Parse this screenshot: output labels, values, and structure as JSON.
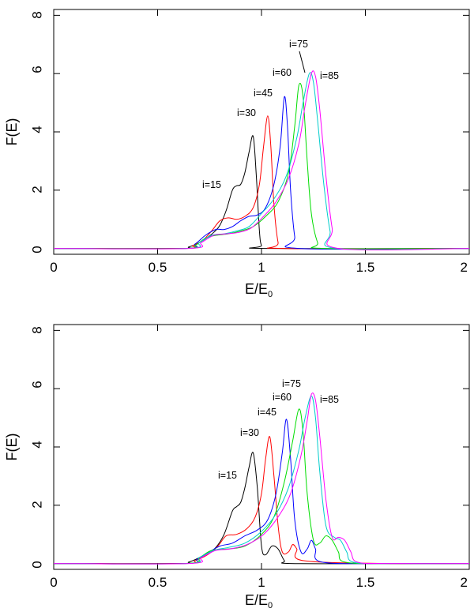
{
  "chart_data": [
    {
      "type": "line",
      "panel": "top",
      "xlabel": "E/E",
      "xlabel_subscript": "0",
      "ylabel": "F(E)",
      "xlim": [
        0,
        2
      ],
      "ylim": [
        -0.2,
        8.2
      ],
      "xticks": [
        0,
        0.5,
        1,
        1.5,
        2
      ],
      "xtick_labels": [
        "0",
        "0.5",
        "1",
        "1.5",
        "2"
      ],
      "yticks": [
        0,
        2,
        4,
        6,
        8
      ],
      "ytick_labels": [
        "0",
        "2",
        "4",
        "6",
        "8"
      ],
      "grid": false,
      "series": [
        {
          "name": "i=15",
          "color": "#000000",
          "x": [
            0,
            0.6,
            0.65,
            0.7,
            0.74,
            0.77,
            0.8,
            0.83,
            0.86,
            0.88,
            0.9,
            0.92,
            0.94,
            0.96,
            0.975,
            0.99,
            1.0,
            1.02,
            2
          ],
          "y": [
            0,
            0,
            0.05,
            0.2,
            0.38,
            0.55,
            0.8,
            1.3,
            2.0,
            2.15,
            2.2,
            2.6,
            3.3,
            3.85,
            2.5,
            0.6,
            0.1,
            0,
            0
          ]
        },
        {
          "name": "i=30",
          "color": "#ff0000",
          "x": [
            0,
            0.62,
            0.67,
            0.72,
            0.76,
            0.8,
            0.84,
            0.88,
            0.92,
            0.96,
            0.99,
            1.01,
            1.03,
            1.045,
            1.06,
            1.08,
            1.1,
            2
          ],
          "y": [
            0,
            0,
            0.1,
            0.3,
            0.6,
            0.95,
            1.05,
            1.0,
            1.1,
            1.4,
            2.2,
            3.5,
            4.55,
            3.5,
            1.5,
            0.2,
            0,
            0
          ]
        },
        {
          "name": "i=45",
          "color": "#0000ff",
          "x": [
            0,
            0.63,
            0.68,
            0.73,
            0.78,
            0.82,
            0.86,
            0.9,
            0.94,
            0.98,
            1.02,
            1.06,
            1.09,
            1.11,
            1.125,
            1.14,
            1.16,
            1.18,
            2
          ],
          "y": [
            0,
            0,
            0.15,
            0.45,
            0.65,
            0.65,
            0.75,
            0.95,
            1.1,
            1.15,
            1.4,
            2.2,
            3.5,
            5.2,
            4.2,
            2.0,
            0.4,
            0,
            0
          ]
        },
        {
          "name": "i=60",
          "color": "#00dd00",
          "x": [
            0,
            0.63,
            0.68,
            0.73,
            0.78,
            0.84,
            0.9,
            0.96,
            1.02,
            1.08,
            1.13,
            1.16,
            1.18,
            1.2,
            1.22,
            1.24,
            1.27,
            1.3,
            2
          ],
          "y": [
            0,
            0,
            0.1,
            0.35,
            0.45,
            0.5,
            0.6,
            0.75,
            1.1,
            1.6,
            2.6,
            4.2,
            5.6,
            5.2,
            3.0,
            1.2,
            0.2,
            0,
            0
          ]
        },
        {
          "name": "i=75",
          "color": "#00cccc",
          "x": [
            0,
            0.64,
            0.7,
            0.76,
            0.82,
            0.88,
            0.94,
            1.0,
            1.06,
            1.12,
            1.17,
            1.2,
            1.23,
            1.25,
            1.27,
            1.3,
            1.33,
            1.36,
            2
          ],
          "y": [
            0,
            0,
            0.2,
            0.45,
            0.5,
            0.6,
            0.75,
            1.2,
            1.7,
            2.5,
            3.8,
            5.0,
            6.0,
            5.7,
            4.4,
            2.2,
            0.6,
            0,
            0
          ]
        },
        {
          "name": "i=85",
          "color": "#ff00ff",
          "x": [
            0,
            0.65,
            0.71,
            0.77,
            0.83,
            0.89,
            0.95,
            1.01,
            1.07,
            1.13,
            1.18,
            1.21,
            1.24,
            1.26,
            1.28,
            1.31,
            1.34,
            1.37,
            2
          ],
          "y": [
            0,
            0,
            0.2,
            0.45,
            0.5,
            0.55,
            0.7,
            1.1,
            1.6,
            2.4,
            3.6,
            4.9,
            6.0,
            5.9,
            4.8,
            2.5,
            0.7,
            0,
            0
          ]
        }
      ],
      "annotations": [
        "i=15",
        "i=30",
        "i=45",
        "i=60",
        "i=75",
        "i=85"
      ]
    },
    {
      "type": "line",
      "panel": "bottom",
      "xlabel": "E/E",
      "xlabel_subscript": "0",
      "ylabel": "F(E)",
      "xlim": [
        0,
        2
      ],
      "ylim": [
        -0.2,
        8.2
      ],
      "xticks": [
        0,
        0.5,
        1,
        1.5,
        2
      ],
      "xtick_labels": [
        "0",
        "0.5",
        "1",
        "1.5",
        "2"
      ],
      "yticks": [
        0,
        2,
        4,
        6,
        8
      ],
      "ytick_labels": [
        "0",
        "2",
        "4",
        "6",
        "8"
      ],
      "grid": false,
      "series": [
        {
          "name": "i=15",
          "color": "#000000",
          "x": [
            0,
            0.6,
            0.65,
            0.7,
            0.74,
            0.78,
            0.82,
            0.86,
            0.88,
            0.9,
            0.92,
            0.94,
            0.96,
            0.98,
            1.0,
            1.02,
            1.05,
            1.08,
            1.11,
            1.14,
            1.6,
            2
          ],
          "y": [
            0,
            0,
            0.05,
            0.2,
            0.35,
            0.55,
            1.0,
            1.8,
            1.95,
            2.1,
            2.6,
            3.3,
            3.8,
            2.6,
            0.6,
            0.3,
            0.6,
            0.5,
            0.1,
            0,
            0,
            0
          ]
        },
        {
          "name": "i=30",
          "color": "#ff0000",
          "x": [
            0,
            0.62,
            0.68,
            0.74,
            0.79,
            0.83,
            0.88,
            0.93,
            0.97,
            1.0,
            1.02,
            1.04,
            1.06,
            1.08,
            1.1,
            1.13,
            1.15,
            1.17,
            1.2,
            1.6,
            2
          ],
          "y": [
            0,
            0,
            0.1,
            0.3,
            0.6,
            0.95,
            1.0,
            1.2,
            1.6,
            2.4,
            3.6,
            4.35,
            3.0,
            1.3,
            0.4,
            0.4,
            0.65,
            0.5,
            0.1,
            0,
            0
          ]
        },
        {
          "name": "i=45",
          "color": "#0000ff",
          "x": [
            0,
            0.63,
            0.69,
            0.75,
            0.8,
            0.86,
            0.92,
            0.98,
            1.03,
            1.07,
            1.1,
            1.12,
            1.14,
            1.16,
            1.19,
            1.22,
            1.24,
            1.26,
            1.29,
            1.6,
            2
          ],
          "y": [
            0,
            0,
            0.15,
            0.4,
            0.6,
            0.7,
            0.95,
            1.15,
            1.5,
            2.4,
            3.8,
            4.95,
            3.6,
            1.5,
            0.4,
            0.5,
            0.8,
            0.5,
            0.05,
            0,
            0
          ]
        },
        {
          "name": "i=60",
          "color": "#00dd00",
          "x": [
            0,
            0.63,
            0.7,
            0.76,
            0.84,
            0.92,
            1.0,
            1.06,
            1.11,
            1.15,
            1.18,
            1.2,
            1.22,
            1.25,
            1.28,
            1.31,
            1.34,
            1.37,
            1.4,
            1.6,
            2
          ],
          "y": [
            0,
            0,
            0.2,
            0.45,
            0.5,
            0.6,
            1.0,
            1.6,
            2.8,
            4.2,
            5.3,
            4.5,
            2.4,
            0.8,
            0.7,
            0.95,
            0.8,
            0.4,
            0.05,
            0,
            0
          ]
        },
        {
          "name": "i=75",
          "color": "#00cccc",
          "x": [
            0,
            0.64,
            0.7,
            0.77,
            0.84,
            0.92,
            1.0,
            1.07,
            1.13,
            1.18,
            1.21,
            1.24,
            1.26,
            1.28,
            1.31,
            1.35,
            1.38,
            1.41,
            1.44,
            1.6,
            2
          ],
          "y": [
            0,
            0,
            0.2,
            0.45,
            0.55,
            0.7,
            1.1,
            1.7,
            2.6,
            3.9,
            5.0,
            5.75,
            5.0,
            3.2,
            1.3,
            0.9,
            0.8,
            0.4,
            0.05,
            0,
            0
          ]
        },
        {
          "name": "i=85",
          "color": "#ff00ff",
          "x": [
            0,
            0.65,
            0.71,
            0.78,
            0.85,
            0.93,
            1.01,
            1.08,
            1.14,
            1.19,
            1.22,
            1.24,
            1.26,
            1.28,
            1.31,
            1.34,
            1.37,
            1.4,
            1.43,
            1.46,
            1.6,
            2
          ],
          "y": [
            0,
            0,
            0.2,
            0.45,
            0.5,
            0.65,
            1.0,
            1.6,
            2.4,
            3.7,
            4.9,
            5.8,
            5.6,
            4.4,
            2.2,
            0.9,
            0.9,
            0.8,
            0.4,
            0.05,
            0,
            0
          ]
        }
      ],
      "annotations": [
        "i=15",
        "i=30",
        "i=45",
        "i=60",
        "i=75",
        "i=85"
      ]
    }
  ]
}
